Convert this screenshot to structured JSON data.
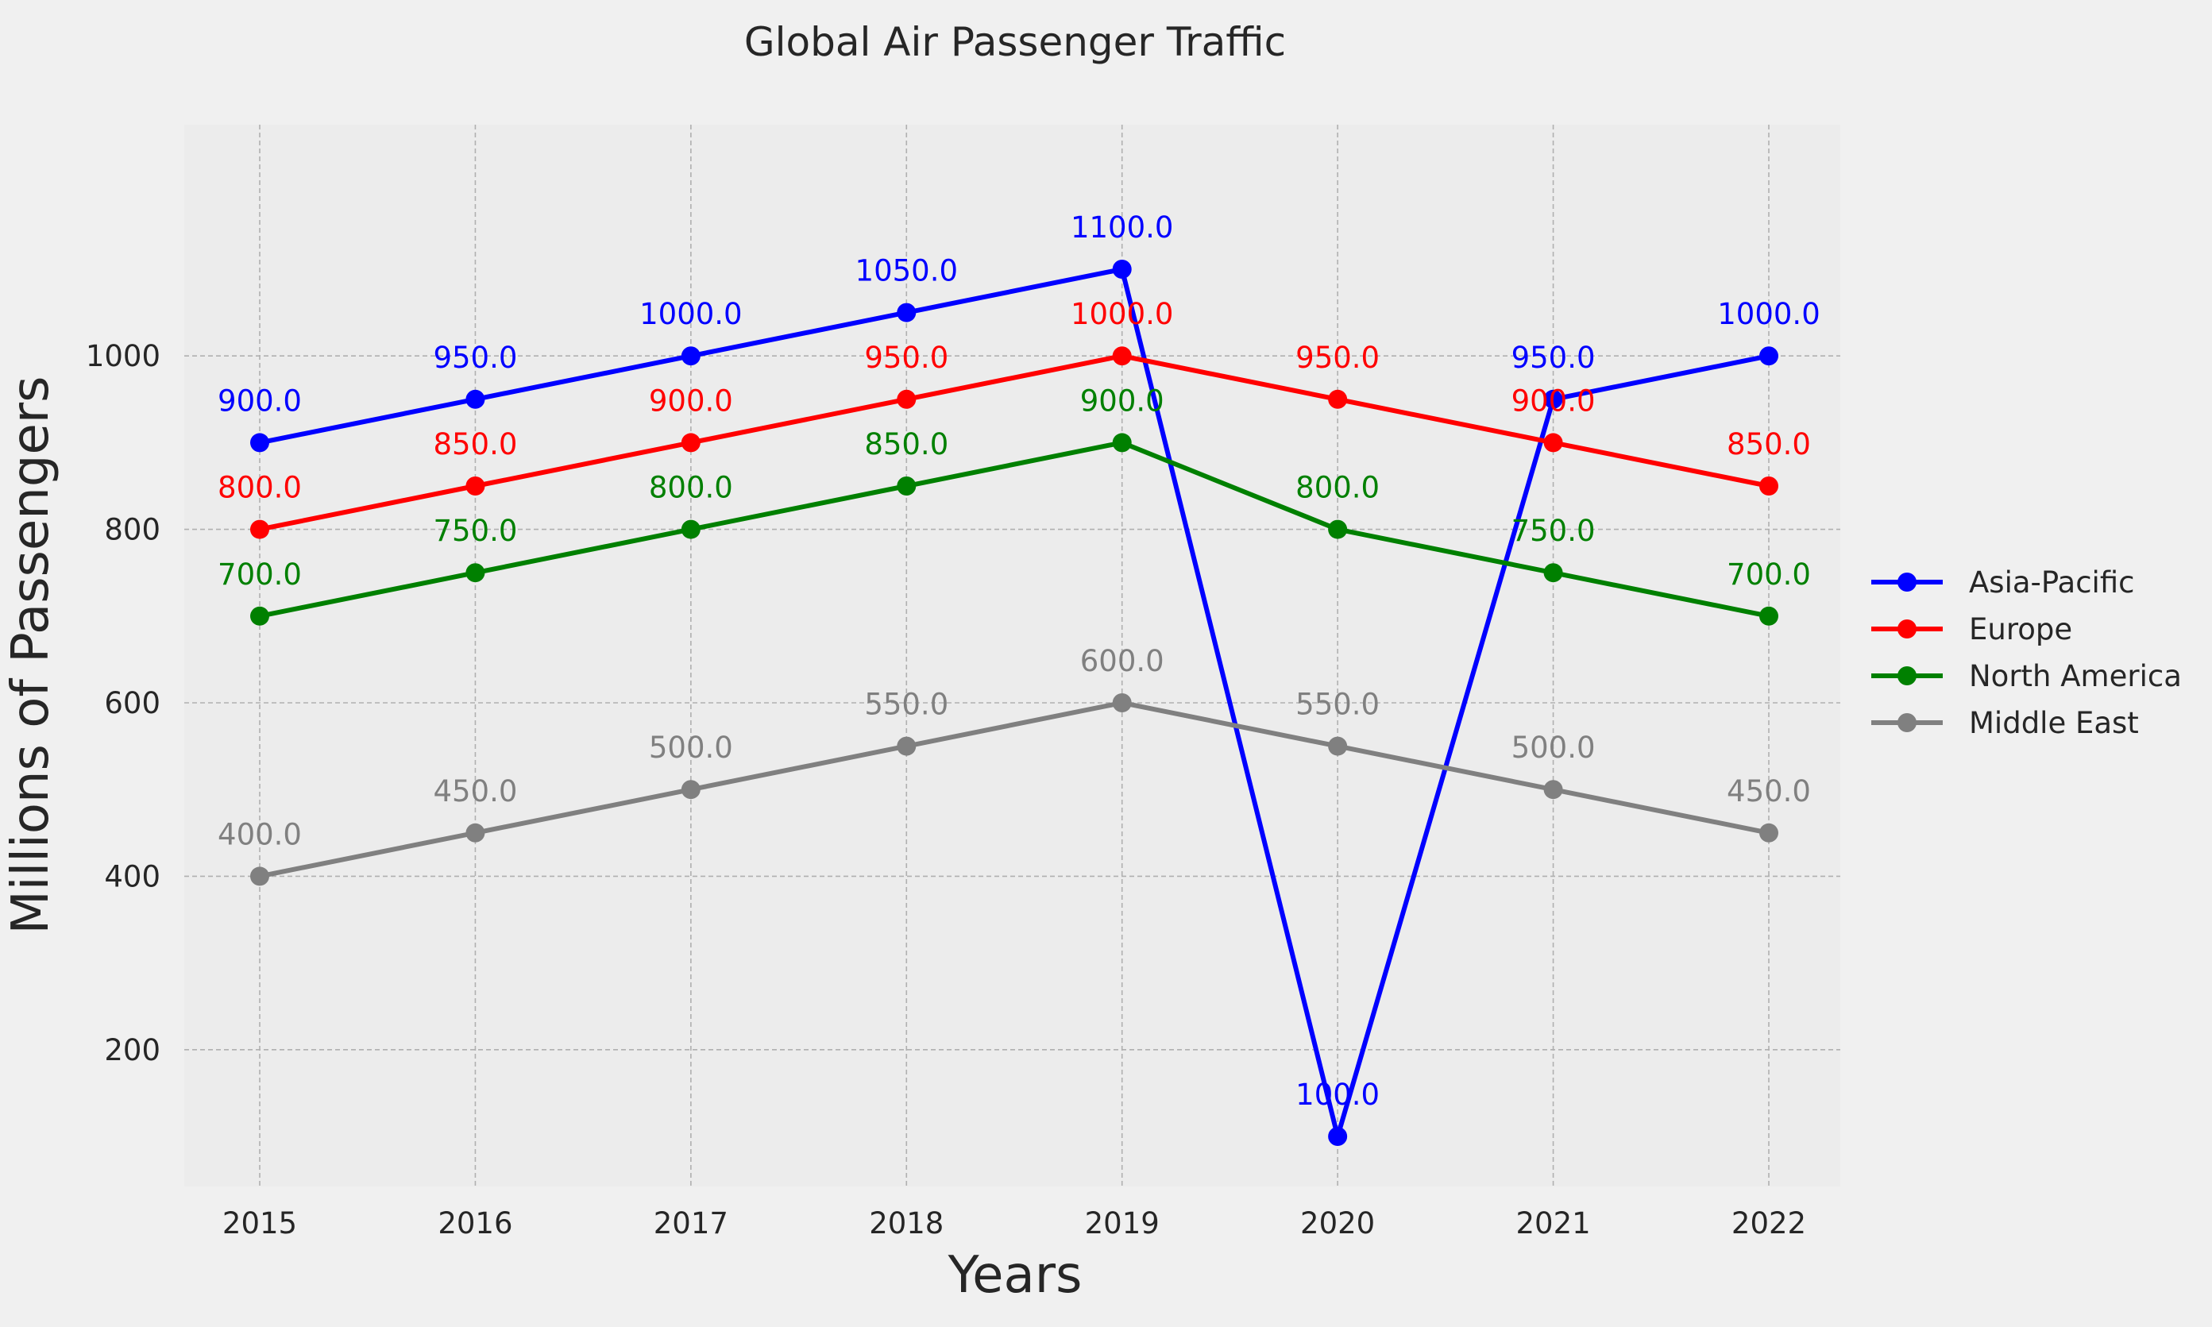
{
  "chart_data": {
    "type": "line",
    "title": "Global Air Passenger Traffic",
    "xlabel": "Years",
    "ylabel": "Millions of Passengers",
    "categories": [
      "2015",
      "2016",
      "2017",
      "2018",
      "2019",
      "2020",
      "2021",
      "2022"
    ],
    "ylim": [
      50,
      1150
    ],
    "yticks": [
      200,
      400,
      600,
      800,
      1000
    ],
    "grid": true,
    "legend_position": "right",
    "series": [
      {
        "name": "Asia-Pacific",
        "color": "#0000ff",
        "values": [
          900,
          950,
          1000,
          1050,
          1100,
          100,
          950,
          1000
        ]
      },
      {
        "name": "Europe",
        "color": "#ff0000",
        "values": [
          800,
          850,
          900,
          950,
          1000,
          950,
          900,
          850
        ]
      },
      {
        "name": "North America",
        "color": "#008000",
        "values": [
          700,
          750,
          800,
          850,
          900,
          800,
          750,
          700
        ]
      },
      {
        "name": "Middle East",
        "color": "#808080",
        "values": [
          400,
          450,
          500,
          550,
          600,
          550,
          500,
          450
        ]
      }
    ],
    "data_labels": [
      [
        "900.0",
        "950.0",
        "1000.0",
        "1050.0",
        "1100.0",
        "100.0",
        "950.0",
        "1000.0"
      ],
      [
        "800.0",
        "850.0",
        "900.0",
        "950.0",
        "1000.0",
        "950.0",
        "900.0",
        "850.0"
      ],
      [
        "700.0",
        "750.0",
        "800.0",
        "850.0",
        "900.0",
        "800.0",
        "750.0",
        "700.0"
      ],
      [
        "400.0",
        "450.0",
        "500.0",
        "550.0",
        "600.0",
        "550.0",
        "500.0",
        "450.0"
      ]
    ],
    "background": "#f0f0f0",
    "plot_background": "#ececec",
    "grid_color": "#b0b0b0"
  }
}
